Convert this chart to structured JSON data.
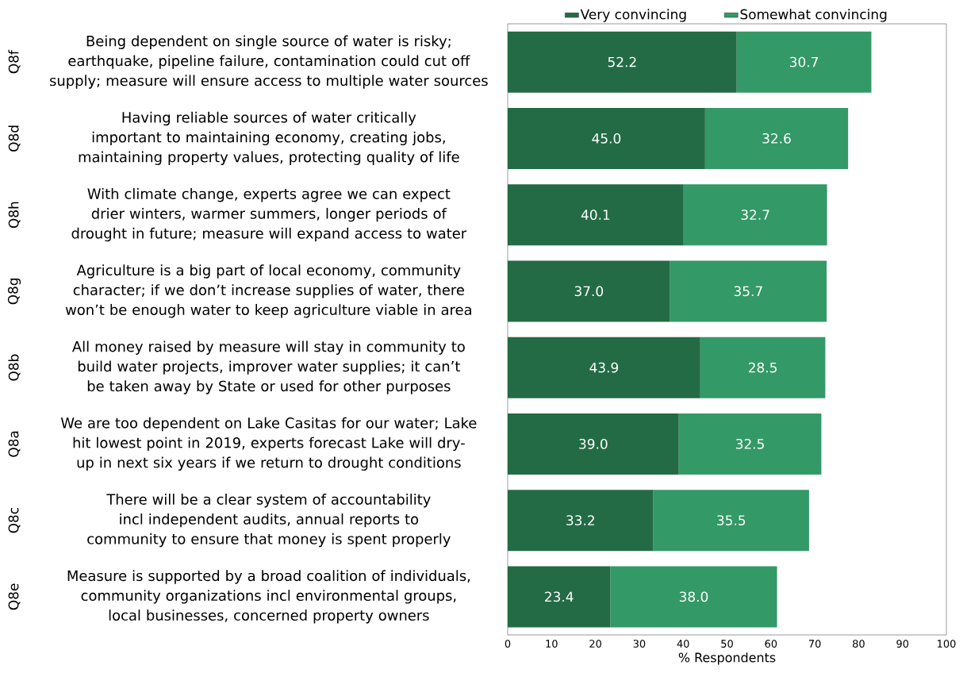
{
  "chart_data": {
    "type": "bar",
    "orientation": "horizontal",
    "stacked": true,
    "categories": [
      "Being dependent on single source of water is risky; earthquake, pipeline failure, contamination could cut off supply; measure will ensure access to multiple water sources",
      "Having reliable sources of water critically important to maintaining economy, creating jobs, maintaining property values, protecting quality of life",
      "With climate change, experts agree we can expect drier winters, warmer summers, longer periods of drought in future; measure will expand access to water",
      "Agriculture is a big part of local economy, community character; if we don’t increase supplies of water, there won’t be enough water to keep agriculture viable in area",
      "All money raised by measure will stay in community to build water projects, improver water supplies; it can’t be taken away by State or used for other purposes",
      "We are too dependent on Lake Casitas for our water; Lake hit lowest point in 2019, experts forecast Lake will dry-up in next six years if we return to drought conditions",
      "There will be a clear system of accountability incl independent audits, annual reports to community to ensure that money is spent properly",
      "Measure is supported by a broad coalition of individuals, community organizations incl environmental groups, local businesses, concerned property owners"
    ],
    "annotations": [
      "Q8f",
      "Q8d",
      "Q8h",
      "Q8g",
      "Q8b",
      "Q8a",
      "Q8c",
      "Q8e"
    ],
    "series": [
      {
        "name": "Very convincing",
        "color": "#236b45",
        "values": [
          52.2,
          45.0,
          40.1,
          37.0,
          43.9,
          39.0,
          33.2,
          23.4
        ],
        "value_labels": [
          "52.2",
          "45.0",
          "40.1",
          "37.0",
          "43.9",
          "39.0",
          "33.2",
          "23.4"
        ]
      },
      {
        "name": "Somewhat convincing",
        "color": "#339966",
        "values": [
          30.7,
          32.6,
          32.7,
          35.7,
          28.5,
          32.5,
          35.5,
          38.0
        ],
        "value_labels": [
          "30.7",
          "32.6",
          "32.7",
          "35.7",
          "28.5",
          "32.5",
          "35.5",
          "38.0"
        ]
      }
    ],
    "xlabel": "% Respondents",
    "xlim": [
      0,
      100
    ],
    "xticks": [
      0,
      10,
      20,
      30,
      40,
      50,
      60,
      70,
      80,
      90,
      100
    ],
    "legend": "top"
  }
}
